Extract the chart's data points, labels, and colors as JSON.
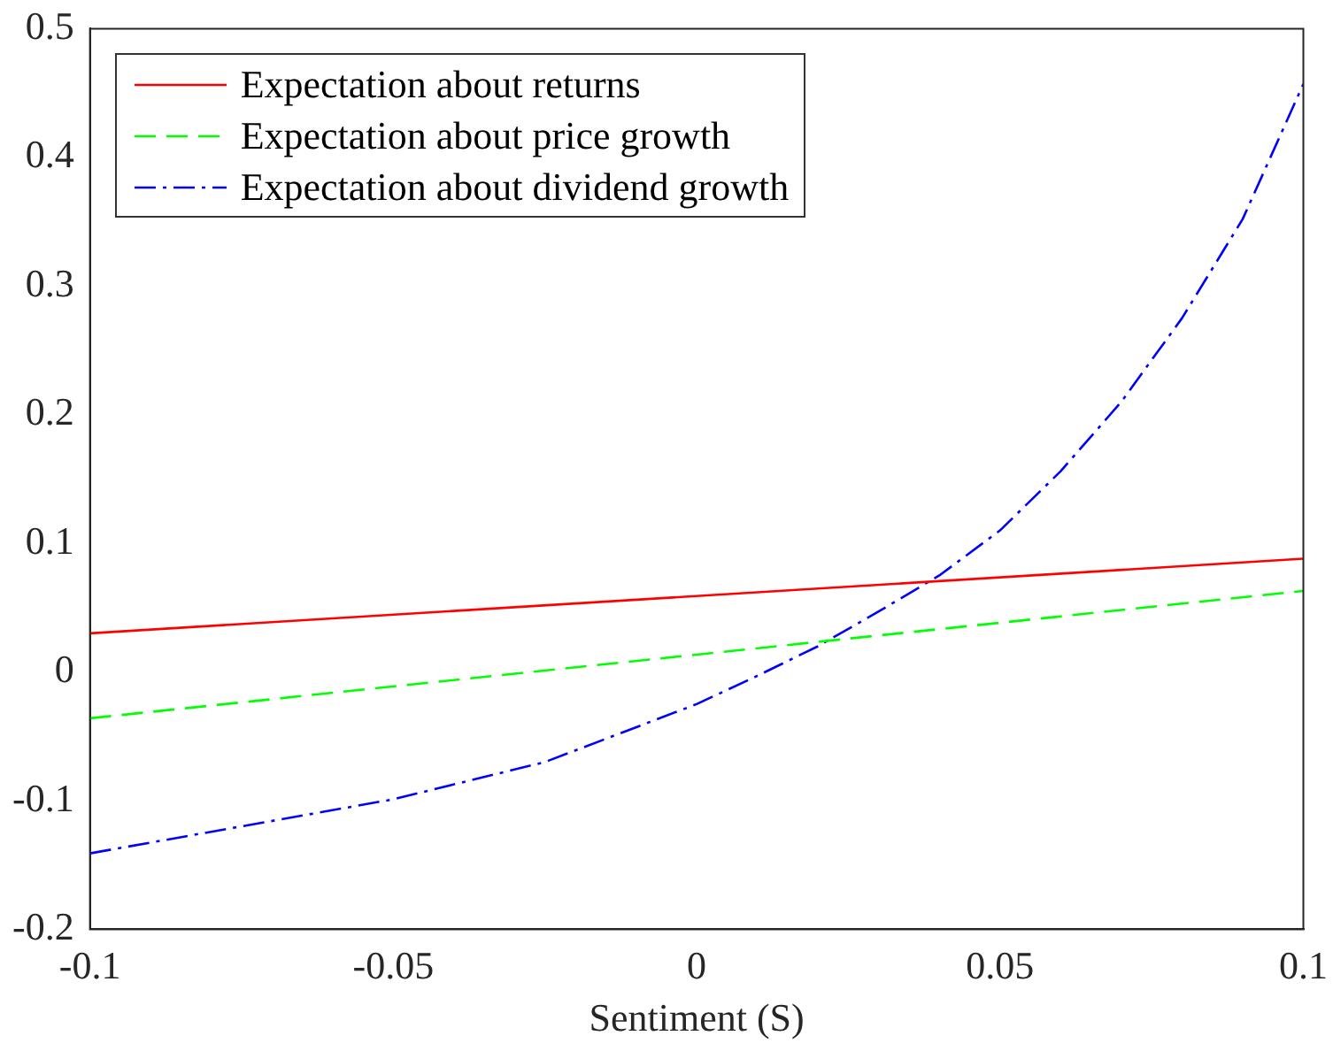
{
  "chart_data": {
    "type": "line",
    "xlabel": "Sentiment (S)",
    "xlim": [
      -0.1,
      0.1
    ],
    "xticks": [
      -0.1,
      -0.05,
      0,
      0.05,
      0.1
    ],
    "ylim": [
      -0.2,
      0.5
    ],
    "yticks": [
      -0.2,
      -0.1,
      0,
      0.1,
      0.2,
      0.3,
      0.4,
      0.5
    ],
    "grid": false,
    "legend": "top left",
    "marker": "none",
    "series": [
      {
        "name": "Expectation about returns",
        "color": "#ff0000",
        "line_style": "solid",
        "x": [
          -0.1,
          0.1
        ],
        "values": [
          0.03,
          0.088
        ]
      },
      {
        "name": "Expectation about price growth",
        "color": "#00ff00",
        "line_style": "dashed",
        "x": [
          -0.1,
          0.1
        ],
        "values": [
          -0.036,
          0.063
        ]
      },
      {
        "name": "Expectation about dividend growth",
        "color": "#0000ff",
        "line_style": "dashdot",
        "x": [
          -0.1,
          -0.075,
          -0.05,
          -0.025,
          0,
          0.01,
          0.02,
          0.03,
          0.04,
          0.05,
          0.06,
          0.07,
          0.08,
          0.09,
          0.1
        ],
        "values": [
          -0.141,
          -0.12,
          -0.099,
          -0.07,
          -0.025,
          -0.003,
          0.02,
          0.047,
          0.075,
          0.11,
          0.156,
          0.21,
          0.275,
          0.352,
          0.457
        ]
      }
    ]
  }
}
